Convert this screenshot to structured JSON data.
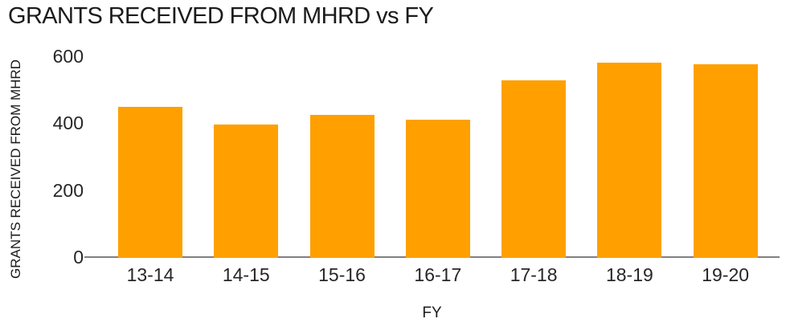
{
  "chart_data": {
    "type": "bar",
    "title": "GRANTS RECEIVED FROM MHRD vs FY",
    "categories": [
      "13-14",
      "14-15",
      "15-16",
      "16-17",
      "17-18",
      "18-19",
      "19-20"
    ],
    "values": [
      450,
      397,
      424,
      410,
      529,
      582,
      576
    ],
    "xlabel": "FY",
    "ylabel": "GRANTS RECEIVED FROM MHRD",
    "ylim": [
      0,
      600
    ],
    "yticks": [
      0,
      200,
      400,
      600
    ],
    "grid": false,
    "legend_position": "none",
    "colors": {
      "bar": "#FFA000",
      "axis_line": "#808080",
      "text": "#1B1B1B"
    }
  }
}
